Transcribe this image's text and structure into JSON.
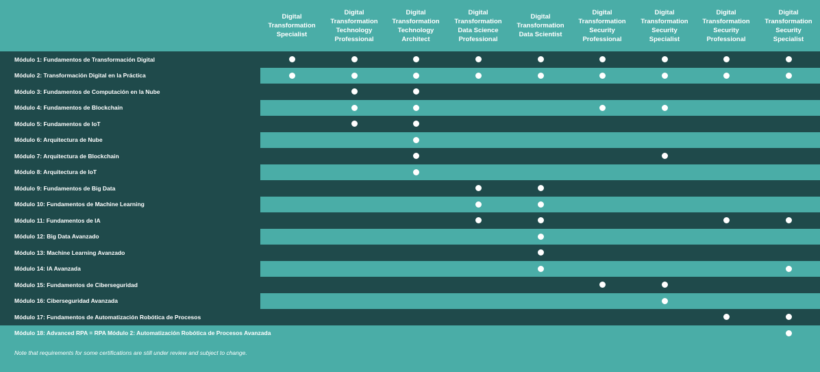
{
  "columns": [
    "Digital\nTransformation\nSpecialist",
    "Digital\nTransformation\nTechnology\nProfessional",
    "Digital\nTransformation\nTechnology\nArchitect",
    "Digital\nTransformation\nData Science\nProfessional",
    "Digital\nTransformation\nData Scientist",
    "Digital\nTransformation\nSecurity\nProfessional",
    "Digital\nTransformation\nSecurity\nSpecialist",
    "Digital\nTransformation\nSecurity\nProfessional",
    "Digital\nTransformation\nSecurity\nSpecialist"
  ],
  "rows": [
    {
      "label": "Módulo 1: Fundamentos de Transformación Digital",
      "marks": [
        1,
        1,
        1,
        1,
        1,
        1,
        1,
        1,
        1
      ]
    },
    {
      "label": "Módulo 2: Transformación Digital en la Práctica",
      "marks": [
        1,
        1,
        1,
        1,
        1,
        1,
        1,
        1,
        1
      ]
    },
    {
      "label": "Módulo 3: Fundamentos de Computación en la Nube",
      "marks": [
        0,
        1,
        1,
        0,
        0,
        0,
        0,
        0,
        0
      ]
    },
    {
      "label": "Módulo 4: Fundamentos de Blockchain",
      "marks": [
        0,
        1,
        1,
        0,
        0,
        1,
        1,
        0,
        0
      ]
    },
    {
      "label": "Módulo 5: Fundamentos de IoT",
      "marks": [
        0,
        1,
        1,
        0,
        0,
        0,
        0,
        0,
        0
      ]
    },
    {
      "label": "Módulo 6: Arquitectura de Nube",
      "marks": [
        0,
        0,
        1,
        0,
        0,
        0,
        0,
        0,
        0
      ]
    },
    {
      "label": "Módulo 7: Arquitectura de Blockchain",
      "marks": [
        0,
        0,
        1,
        0,
        0,
        0,
        1,
        0,
        0
      ]
    },
    {
      "label": "Módulo 8: Arquitectura de IoT",
      "marks": [
        0,
        0,
        1,
        0,
        0,
        0,
        0,
        0,
        0
      ]
    },
    {
      "label": "Módulo 9: Fundamentos de Big Data",
      "marks": [
        0,
        0,
        0,
        1,
        1,
        0,
        0,
        0,
        0
      ]
    },
    {
      "label": "Módulo 10: Fundamentos de Machine Learning",
      "marks": [
        0,
        0,
        0,
        1,
        1,
        0,
        0,
        0,
        0
      ]
    },
    {
      "label": "Módulo 11: Fundamentos de IA",
      "marks": [
        0,
        0,
        0,
        1,
        1,
        0,
        0,
        1,
        1
      ]
    },
    {
      "label": "Módulo 12: Big Data Avanzado",
      "marks": [
        0,
        0,
        0,
        0,
        1,
        0,
        0,
        0,
        0
      ]
    },
    {
      "label": "Módulo 13: Machine Learning Avanzado",
      "marks": [
        0,
        0,
        0,
        0,
        1,
        0,
        0,
        0,
        0
      ]
    },
    {
      "label": "Módulo 14: IA Avanzada",
      "marks": [
        0,
        0,
        0,
        0,
        1,
        0,
        0,
        0,
        1
      ]
    },
    {
      "label": "Módulo 15: Fundamentos de Ciberseguridad",
      "marks": [
        0,
        0,
        0,
        0,
        0,
        1,
        1,
        0,
        0
      ]
    },
    {
      "label": "Módulo 16: Ciberseguridad Avanzada",
      "marks": [
        0,
        0,
        0,
        0,
        0,
        0,
        1,
        0,
        0
      ]
    },
    {
      "label": "Módulo 17: Fundamentos de Automatización Robótica de Procesos",
      "marks": [
        0,
        0,
        0,
        0,
        0,
        0,
        0,
        1,
        1
      ]
    },
    {
      "label": "Módulo 18: Advanced RPA = RPA Módulo 2: Automatización Robótica de Procesos Avanzada",
      "marks": [
        0,
        0,
        0,
        0,
        0,
        0,
        0,
        0,
        1
      ]
    }
  ],
  "note": "Note that requirements for some certifications are still under review and subject to change.",
  "colors": {
    "dark": "#1f4a4b",
    "light": "#4aada7",
    "dot": "#ffffff"
  }
}
